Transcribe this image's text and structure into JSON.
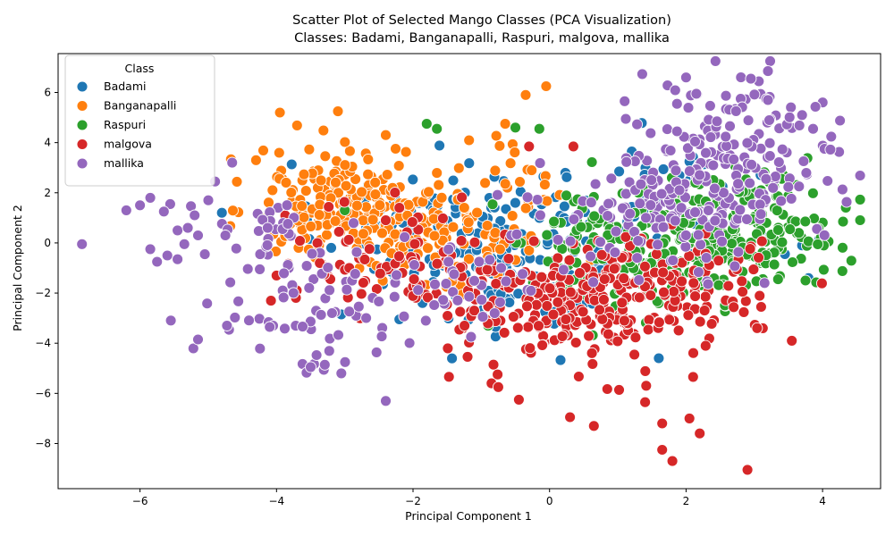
{
  "chart_data": {
    "type": "scatter",
    "title": "Scatter Plot of Selected Mango Classes (PCA Visualization)",
    "subtitle": "Classes: Badami, Banganapalli, Raspuri, malgova, mallika",
    "xlabel": "Principal Component 1",
    "ylabel": "Principal Component 2",
    "xlim": [
      -7.2,
      4.85
    ],
    "ylim": [
      -9.8,
      7.55
    ],
    "xticks": [
      -6,
      -4,
      -2,
      0,
      2,
      4
    ],
    "yticks": [
      -8,
      -6,
      -4,
      -2,
      0,
      2,
      4,
      6
    ],
    "grid": false,
    "legend": {
      "title": "Class",
      "position": "top-left"
    },
    "series": [
      {
        "name": "Badami",
        "color": "#1f77b4",
        "clusters": [
          {
            "cx": -1.6,
            "cy": 0.6,
            "sx": 0.9,
            "sy": 1.3,
            "n": 120
          },
          {
            "cx": -0.5,
            "cy": -1.5,
            "sx": 0.8,
            "sy": 1.2,
            "n": 70
          },
          {
            "cx": 1.5,
            "cy": 1.0,
            "sx": 1.1,
            "sy": 1.4,
            "n": 70
          }
        ],
        "points": [
          [
            3.7,
            -0.1
          ],
          [
            3.95,
            0.15
          ],
          [
            -4.8,
            1.2
          ],
          [
            -3.05,
            -2.85
          ],
          [
            -2.2,
            -3.05
          ],
          [
            1.6,
            -4.6
          ]
        ]
      },
      {
        "name": "Banganapalli",
        "color": "#ff7f0e",
        "clusters": [
          {
            "cx": -3.0,
            "cy": 1.6,
            "sx": 0.65,
            "sy": 1.1,
            "n": 180
          },
          {
            "cx": -1.6,
            "cy": 0.3,
            "sx": 0.75,
            "sy": 1.1,
            "n": 110
          },
          {
            "cx": -0.4,
            "cy": 2.6,
            "sx": 0.5,
            "sy": 1.0,
            "n": 25
          }
        ],
        "points": [
          [
            -3.95,
            5.2
          ],
          [
            -3.1,
            5.25
          ],
          [
            -0.35,
            5.9
          ],
          [
            -0.05,
            6.25
          ],
          [
            -0.65,
            4.75
          ],
          [
            -2.4,
            4.3
          ],
          [
            -4.3,
            3.3
          ],
          [
            -0.3,
            -0.3
          ]
        ]
      },
      {
        "name": "Raspuri",
        "color": "#2ca02c",
        "clusters": [
          {
            "cx": 2.8,
            "cy": 0.6,
            "sx": 0.7,
            "sy": 1.1,
            "n": 180
          },
          {
            "cx": 1.5,
            "cy": -0.6,
            "sx": 0.9,
            "sy": 1.1,
            "n": 110
          },
          {
            "cx": 0.4,
            "cy": 0.4,
            "sx": 0.6,
            "sy": 1.0,
            "n": 40
          }
        ],
        "points": [
          [
            4.3,
            0.85
          ],
          [
            -1.8,
            4.75
          ],
          [
            -1.65,
            4.55
          ],
          [
            -0.15,
            4.55
          ],
          [
            -0.5,
            4.6
          ],
          [
            -0.9,
            -3.3
          ],
          [
            3.75,
            -1.5
          ],
          [
            -3.0,
            1.3
          ]
        ]
      },
      {
        "name": "malgova",
        "color": "#d62728",
        "clusters": [
          {
            "cx": 0.5,
            "cy": -2.6,
            "sx": 0.9,
            "sy": 1.2,
            "n": 230
          },
          {
            "cx": -2.1,
            "cy": -0.6,
            "sx": 0.8,
            "sy": 1.0,
            "n": 90
          },
          {
            "cx": 1.9,
            "cy": -1.6,
            "sx": 0.8,
            "sy": 1.0,
            "n": 70
          }
        ],
        "points": [
          [
            2.9,
            -9.05
          ],
          [
            1.8,
            -8.7
          ],
          [
            1.65,
            -8.25
          ],
          [
            2.2,
            -7.6
          ],
          [
            0.65,
            -7.3
          ],
          [
            1.65,
            -7.2
          ],
          [
            2.05,
            -7.0
          ],
          [
            0.3,
            -6.95
          ],
          [
            1.4,
            -6.35
          ],
          [
            -0.45,
            -6.25
          ],
          [
            -0.85,
            -5.6
          ],
          [
            -0.75,
            -5.75
          ],
          [
            3.55,
            -3.9
          ],
          [
            -0.3,
            3.85
          ],
          [
            0.35,
            3.85
          ],
          [
            -3.3,
            -1.25
          ],
          [
            -4.0,
            -1.3
          ],
          [
            3.1,
            -2.55
          ]
        ]
      },
      {
        "name": "mallika",
        "color": "#9467bd",
        "clusters": [
          {
            "cx": 2.7,
            "cy": 3.3,
            "sx": 0.8,
            "sy": 1.6,
            "n": 170
          },
          {
            "cx": 1.6,
            "cy": 1.2,
            "sx": 0.9,
            "sy": 1.1,
            "n": 110
          },
          {
            "cx": -3.4,
            "cy": -2.5,
            "sx": 0.8,
            "sy": 1.3,
            "n": 70
          },
          {
            "cx": -4.2,
            "cy": 0.6,
            "sx": 0.5,
            "sy": 0.6,
            "n": 25
          },
          {
            "cx": -1.2,
            "cy": -1.5,
            "sx": 0.6,
            "sy": 1.0,
            "n": 30
          }
        ],
        "points": [
          [
            -6.85,
            -0.05
          ],
          [
            -6.2,
            1.3
          ],
          [
            -6.0,
            1.5
          ],
          [
            -5.85,
            1.8
          ],
          [
            -5.65,
            1.25
          ],
          [
            -5.85,
            -0.25
          ],
          [
            -5.75,
            -0.75
          ],
          [
            -5.6,
            -0.5
          ],
          [
            -5.45,
            0.5
          ],
          [
            -5.35,
            -0.05
          ],
          [
            -5.3,
            0.6
          ],
          [
            -5.2,
            1.1
          ],
          [
            -5.15,
            0.3
          ],
          [
            -5.45,
            -0.65
          ],
          [
            -5.05,
            -0.45
          ],
          [
            -5.0,
            1.7
          ],
          [
            -4.9,
            2.45
          ],
          [
            -4.65,
            3.2
          ],
          [
            -4.75,
            0.3
          ],
          [
            -5.15,
            -3.85
          ],
          [
            -4.05,
            -3.3
          ],
          [
            -4.1,
            -3.35
          ],
          [
            -2.4,
            -6.3
          ],
          [
            -3.5,
            -4.95
          ],
          [
            -3.05,
            -5.2
          ],
          [
            3.2,
            6.85
          ],
          [
            2.0,
            6.6
          ],
          [
            2.95,
            6.55
          ],
          [
            1.1,
            5.65
          ],
          [
            3.7,
            5.1
          ],
          [
            2.15,
            5.95
          ],
          [
            3.2,
            5.7
          ]
        ]
      }
    ]
  }
}
